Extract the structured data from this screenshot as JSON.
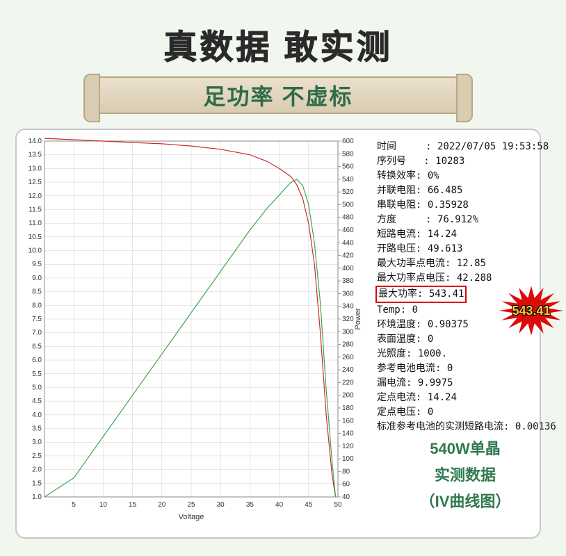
{
  "title": "真数据  敢实测",
  "subtitle": "足功率 不虚标",
  "chart": {
    "type": "line-dual-axis",
    "background_color": "#ffffff",
    "plot_border_color": "#888888",
    "grid_color": "#d0d0d0",
    "xlabel": "Voltage",
    "ylabel_right": "Power",
    "label_fontsize": 11,
    "tick_fontsize": 10,
    "xlim": [
      0,
      50
    ],
    "xtick_step": 5,
    "y_left_lim": [
      1.0,
      14.0
    ],
    "y_left_tick_step": 0.5,
    "y_right_lim": [
      40,
      600
    ],
    "y_right_tick_step": 20,
    "series": [
      {
        "name": "current",
        "axis": "left",
        "color": "#cc2a2a",
        "line_width": 1.2,
        "x": [
          0,
          5,
          10,
          15,
          20,
          25,
          30,
          35,
          38,
          40,
          41,
          42,
          43,
          44,
          45,
          46,
          47,
          48,
          49,
          49.6
        ],
        "y": [
          14.1,
          14.05,
          14.0,
          13.95,
          13.9,
          13.82,
          13.7,
          13.5,
          13.25,
          13.0,
          12.85,
          12.7,
          12.4,
          11.9,
          11.0,
          9.5,
          7.0,
          4.0,
          1.8,
          1.0
        ]
      },
      {
        "name": "power",
        "axis": "right",
        "color": "#3ea54a",
        "line_width": 1.2,
        "x": [
          0,
          5,
          10,
          15,
          20,
          25,
          30,
          35,
          38,
          40,
          41,
          42,
          43,
          44,
          45,
          46,
          47,
          48,
          49,
          49.6
        ],
        "y": [
          40,
          70,
          135,
          200,
          265,
          330,
          395,
          460,
          495,
          515,
          525,
          535,
          540,
          530,
          500,
          440,
          345,
          210,
          95,
          40
        ]
      }
    ]
  },
  "info": {
    "rows": [
      {
        "label": "时间",
        "sep": "     : ",
        "value": "2022/07/05 19:53:58"
      },
      {
        "label": "序列号",
        "sep": "   : ",
        "value": "10283"
      },
      {
        "label": "转换效率",
        "sep": ": ",
        "value": "0%"
      },
      {
        "label": "并联电阻",
        "sep": ": ",
        "value": "66.485"
      },
      {
        "label": "串联电阻",
        "sep": ": ",
        "value": "0.35928"
      },
      {
        "label": "方度",
        "sep": "     : ",
        "value": "76.912%"
      },
      {
        "label": "短路电流",
        "sep": ": ",
        "value": "14.24"
      },
      {
        "label": "开路电压",
        "sep": ": ",
        "value": "49.613"
      },
      {
        "label": "最大功率点电流",
        "sep": ": ",
        "value": "12.85"
      },
      {
        "label": "最大功率点电压",
        "sep": ": ",
        "value": "42.288"
      },
      {
        "label": "最大功率",
        "sep": ": ",
        "value": "543.41",
        "highlight": true
      },
      {
        "label": "Temp",
        "sep": ": ",
        "value": "0"
      },
      {
        "label": "环境温度",
        "sep": ": ",
        "value": "0.90375"
      },
      {
        "label": "表面温度",
        "sep": ": ",
        "value": "0"
      },
      {
        "label": "光照度",
        "sep": ": ",
        "value": "1000."
      },
      {
        "label": "参考电池电流",
        "sep": ": ",
        "value": "0"
      },
      {
        "label": "漏电流",
        "sep": ": ",
        "value": "9.9975"
      },
      {
        "label": "定点电流",
        "sep": ": ",
        "value": "14.24"
      },
      {
        "label": "定点电压",
        "sep": ": ",
        "value": "0"
      },
      {
        "label": "标准参考电池的实测短路电流",
        "sep": ": ",
        "value": "0.00136"
      }
    ]
  },
  "starburst": {
    "value": "543.41",
    "fill": "#dd0a0a",
    "text_color": "#f6c93a",
    "text_stroke": "#000000"
  },
  "caption": {
    "line1": "540W单晶",
    "line2": "实测数据",
    "line3": "（IV曲线图）",
    "color": "#2f7a50"
  }
}
